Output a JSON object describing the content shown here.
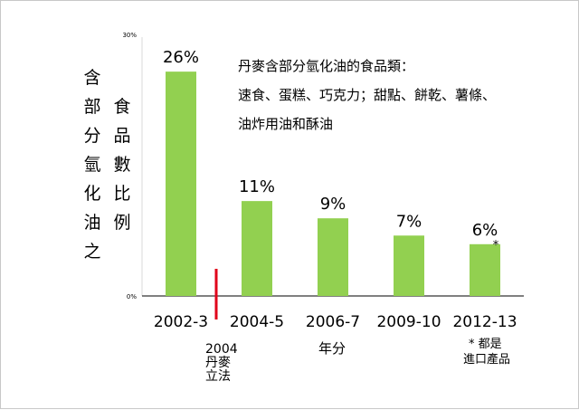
{
  "chart_data": {
    "type": "bar",
    "categories": [
      "2002-3",
      "2004-5",
      "2006-7",
      "2009-10",
      "2012-13"
    ],
    "values": [
      26,
      11,
      9,
      7,
      6
    ],
    "data_labels": [
      "26%",
      "11%",
      "9%",
      "7%",
      "6%"
    ],
    "ylim": [
      0,
      30
    ],
    "y_ticks": [
      "30%",
      "0%"
    ],
    "ylabel_col1": [
      "含",
      "部",
      "分",
      "氫",
      "化",
      "油",
      "之"
    ],
    "ylabel_col2": [
      "食",
      "品",
      "數",
      "比",
      "例"
    ],
    "xlabel": "年分",
    "bar_color": "#92d050",
    "annotation": [
      "丹麥含部分氫化油的食品類：",
      "速食、蛋糕、巧克力；甜點、餅乾、薯條、",
      "油炸用油和酥油"
    ],
    "marker": {
      "label": "2004",
      "lines": [
        "丹麥",
        "立法"
      ],
      "color": "#e0001a"
    },
    "last_bar_mark": "*",
    "footnote": [
      "* 都是",
      "進口產品"
    ],
    "grid": false
  }
}
